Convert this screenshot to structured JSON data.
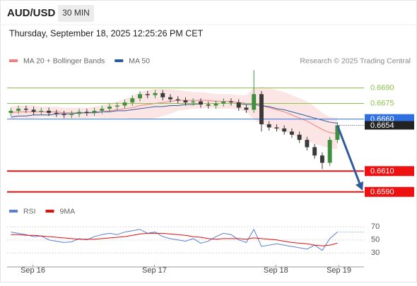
{
  "header": {
    "symbol": "AUD/USD",
    "timeframe": "30 MIN",
    "timestamp": "Thursday, September 18, 2025 12:25:26 PM CET"
  },
  "chart_data": [
    {
      "type": "candlestick",
      "credit": "Research © 2025 Trading Central",
      "xlim": [
        0,
        47
      ],
      "ylim": [
        0.6581,
        0.671
      ],
      "candles": {
        "up_color": "#3f8f3f",
        "down_color": "#3a3a3a",
        "open": [
          0.6666,
          0.6668,
          0.667,
          0.6669,
          0.6667,
          0.6668,
          0.6666,
          0.6665,
          0.6664,
          0.6665,
          0.6667,
          0.6666,
          0.6668,
          0.667,
          0.6672,
          0.6673,
          0.6676,
          0.668,
          0.6684,
          0.6683,
          0.6685,
          0.6681,
          0.6679,
          0.6678,
          0.6676,
          0.6677,
          0.6674,
          0.6673,
          0.6675,
          0.6677,
          0.6676,
          0.6671,
          0.6669,
          0.6684,
          0.6655,
          0.6652,
          0.6651,
          0.6648,
          0.6645,
          0.664,
          0.6633,
          0.6625,
          0.6618,
          0.664
        ],
        "high": [
          0.6671,
          0.6673,
          0.6673,
          0.6672,
          0.6671,
          0.6671,
          0.6669,
          0.6668,
          0.6668,
          0.667,
          0.667,
          0.6671,
          0.6673,
          0.6675,
          0.6676,
          0.6679,
          0.6683,
          0.6687,
          0.6687,
          0.6688,
          0.6688,
          0.6684,
          0.6682,
          0.6681,
          0.668,
          0.668,
          0.6677,
          0.6678,
          0.668,
          0.668,
          0.6679,
          0.6674,
          0.6707,
          0.6687,
          0.6658,
          0.6655,
          0.6654,
          0.6651,
          0.6648,
          0.6643,
          0.6636,
          0.6628,
          0.6643,
          0.6657
        ],
        "low": [
          0.6663,
          0.6665,
          0.6666,
          0.6664,
          0.6664,
          0.6663,
          0.6662,
          0.6661,
          0.6661,
          0.6662,
          0.6663,
          0.6663,
          0.6665,
          0.6667,
          0.6669,
          0.667,
          0.6673,
          0.6677,
          0.668,
          0.668,
          0.6678,
          0.6676,
          0.6675,
          0.6673,
          0.6673,
          0.6671,
          0.667,
          0.667,
          0.6672,
          0.6673,
          0.6668,
          0.6666,
          0.6666,
          0.6648,
          0.6649,
          0.6648,
          0.6645,
          0.6642,
          0.6637,
          0.663,
          0.6622,
          0.6612,
          0.6615,
          0.6637
        ],
        "close": [
          0.6668,
          0.667,
          0.6669,
          0.6667,
          0.6668,
          0.6666,
          0.6665,
          0.6664,
          0.6665,
          0.6667,
          0.6666,
          0.6668,
          0.667,
          0.6672,
          0.6673,
          0.6676,
          0.668,
          0.6684,
          0.6683,
          0.6685,
          0.6681,
          0.6679,
          0.6678,
          0.6676,
          0.6677,
          0.6674,
          0.6673,
          0.6675,
          0.6677,
          0.6676,
          0.6671,
          0.6669,
          0.6684,
          0.6655,
          0.6652,
          0.6651,
          0.6648,
          0.6645,
          0.664,
          0.6633,
          0.6625,
          0.6618,
          0.664,
          0.6654
        ]
      },
      "series": [
        {
          "name": "MA 20 + Bollinger Bands",
          "color": "#f08080",
          "band_color": "#f9d3d3",
          "values": [
            0.6666,
            0.6667,
            0.6667,
            0.6667,
            0.6667,
            0.6667,
            0.6667,
            0.6666,
            0.6666,
            0.6666,
            0.6666,
            0.6667,
            0.6667,
            0.6668,
            0.6669,
            0.667,
            0.6671,
            0.6673,
            0.6674,
            0.6675,
            0.6676,
            0.6677,
            0.6678,
            0.6678,
            0.6678,
            0.6678,
            0.6678,
            0.6677,
            0.6677,
            0.6677,
            0.6676,
            0.6675,
            0.6675,
            0.6673,
            0.6671,
            0.6669,
            0.6667,
            0.6664,
            0.6661,
            0.6658,
            0.6654,
            0.665,
            0.6647,
            0.6646
          ],
          "upper": [
            0.6672,
            0.6673,
            0.6673,
            0.6673,
            0.6672,
            0.6672,
            0.6672,
            0.6671,
            0.6671,
            0.6671,
            0.6671,
            0.6672,
            0.6673,
            0.6675,
            0.6677,
            0.6679,
            0.6682,
            0.6686,
            0.6688,
            0.6689,
            0.6689,
            0.6689,
            0.6688,
            0.6687,
            0.6686,
            0.6686,
            0.6685,
            0.6684,
            0.6684,
            0.6684,
            0.6683,
            0.6683,
            0.669,
            0.6691,
            0.669,
            0.6688,
            0.6686,
            0.6683,
            0.668,
            0.6677,
            0.6672,
            0.6666,
            0.6662,
            0.6661
          ],
          "lower": [
            0.666,
            0.6661,
            0.6661,
            0.6661,
            0.6662,
            0.6662,
            0.6662,
            0.6661,
            0.6661,
            0.6661,
            0.6661,
            0.6662,
            0.6661,
            0.6661,
            0.6661,
            0.6661,
            0.666,
            0.666,
            0.666,
            0.6661,
            0.6663,
            0.6665,
            0.6668,
            0.6669,
            0.667,
            0.667,
            0.6671,
            0.667,
            0.667,
            0.667,
            0.6669,
            0.6667,
            0.666,
            0.6655,
            0.6652,
            0.665,
            0.6648,
            0.6645,
            0.6642,
            0.6639,
            0.6636,
            0.6634,
            0.6632,
            0.6631
          ]
        },
        {
          "name": "MA 50",
          "color": "#2f5a9e",
          "values": [
            0.6662,
            0.6663,
            0.6663,
            0.6664,
            0.6664,
            0.6664,
            0.6665,
            0.6665,
            0.6665,
            0.6666,
            0.6666,
            0.6666,
            0.6667,
            0.6667,
            0.6668,
            0.6668,
            0.6669,
            0.667,
            0.6671,
            0.6672,
            0.6672,
            0.6673,
            0.6673,
            0.6674,
            0.6674,
            0.6675,
            0.6675,
            0.6675,
            0.6675,
            0.6675,
            0.6675,
            0.6674,
            0.6674,
            0.6673,
            0.6672,
            0.667,
            0.6669,
            0.6667,
            0.6665,
            0.6663,
            0.6661,
            0.6659,
            0.6657,
            0.6656
          ]
        }
      ],
      "levels": [
        {
          "value": 0.669,
          "label": "0.6690",
          "color": "#8bc34a",
          "style": "text"
        },
        {
          "value": 0.6675,
          "label": "0.6675",
          "color": "#8bc34a",
          "style": "text"
        },
        {
          "value": 0.666,
          "label": "0.6660",
          "color": "#2f6fe0",
          "style": "badge"
        },
        {
          "value": 0.661,
          "label": "0.6610",
          "color": "#ee1111",
          "style": "badge"
        },
        {
          "value": 0.659,
          "label": "0.6590",
          "color": "#ee1111",
          "style": "badge"
        }
      ],
      "last_price": {
        "value": 0.6654,
        "label": "0.6654",
        "color": "#222222"
      },
      "arrow_color": "#2f5a9e"
    },
    {
      "type": "line",
      "xlim": [
        0,
        47
      ],
      "ylim": [
        12,
        82
      ],
      "yticks": [
        30,
        50,
        70
      ],
      "grid": true,
      "xticks": [
        {
          "value": 3.4,
          "label": "Sep 16"
        },
        {
          "value": 19.4,
          "label": "Sep 17"
        },
        {
          "value": 35.4,
          "label": "Sep 18"
        },
        {
          "value": 43.7,
          "label": "Sep 19"
        }
      ],
      "series": [
        {
          "name": "RSI",
          "color": "#5b7fd6",
          "values": [
            62,
            60,
            58,
            55,
            56,
            50,
            48,
            46,
            47,
            52,
            50,
            55,
            58,
            60,
            58,
            62,
            64,
            66,
            60,
            62,
            55,
            52,
            50,
            48,
            52,
            45,
            48,
            55,
            60,
            58,
            50,
            46,
            66,
            40,
            42,
            44,
            42,
            40,
            38,
            36,
            42,
            34,
            52,
            62
          ]
        },
        {
          "name": "9MA",
          "color": "#e01010",
          "values": [
            58,
            58,
            57,
            57,
            56,
            55,
            54,
            53,
            52,
            51,
            51,
            51,
            52,
            53,
            54,
            55,
            57,
            59,
            60,
            60,
            60,
            59,
            58,
            57,
            55,
            54,
            52,
            51,
            52,
            52,
            52,
            51,
            53,
            52,
            51,
            50,
            48,
            46,
            45,
            44,
            42,
            41,
            42,
            45
          ]
        }
      ]
    }
  ]
}
